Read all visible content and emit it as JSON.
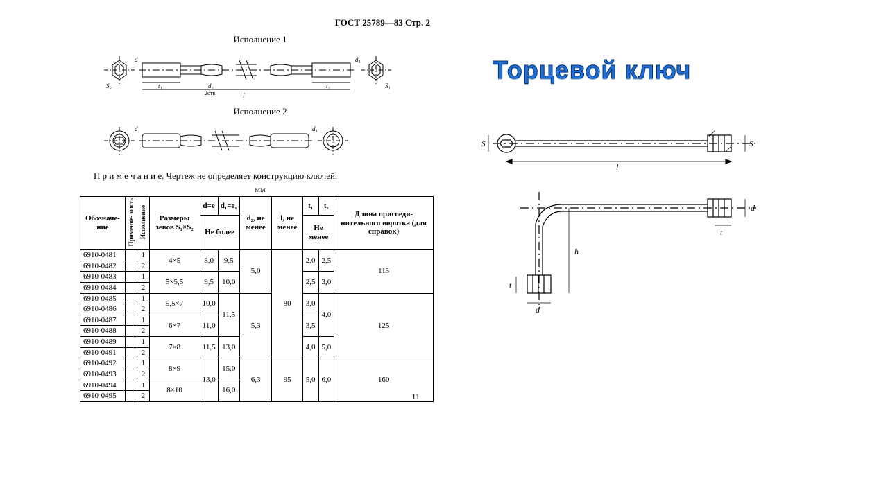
{
  "header": {
    "gost": "ГОСТ 25789—83 Стр. 2"
  },
  "labels": {
    "isp1": "Исполнение 1",
    "isp2": "Исполнение 2",
    "note": "П р и м е ч а н и е.  Чертеж не определяет конструкцию ключей.",
    "mm": "мм",
    "pagenum": "11"
  },
  "title": "Торцевой ключ",
  "dim": {
    "S2": "S₂",
    "S1": "S₁",
    "t1": "t₁",
    "t2": "t₂",
    "d2": "d₂",
    "d2s": "2отв.",
    "l": "l",
    "d1": "d₁",
    "d": "d",
    "S": "S",
    "h": "h",
    "t": "t"
  },
  "table": {
    "head": {
      "c0": "Обозначе-\nние",
      "c1": "Применяе-\nмость",
      "c2": "Исполнение",
      "c3": "Размеры\nзевов\nS₁×S₂",
      "c4": "d=e",
      "c5": "d₁=e₁",
      "c45sub": "Не более",
      "c6": "d₂,\nне\nменее",
      "c7": "l,\nне\nменее",
      "c8": "t₁",
      "c9": "t₂",
      "c89sub": "Не менее",
      "c10": "Длина\nприсоеди-\nнительного\nворотка\n(для\nсправок)"
    },
    "rows": [
      {
        "id": "6910-0481",
        "isp": "1",
        "sz": "4×5",
        "de": "8,0",
        "d1e1": "9,5",
        "d2": "5,0",
        "l": "80",
        "t1": "2,0",
        "t2": "2,5",
        "vorot": "115"
      },
      {
        "id": "6910-0482",
        "isp": "2",
        "sz": "",
        "de": "",
        "d1e1": "",
        "d2": "",
        "l": "",
        "t1": "",
        "t2": "",
        "vorot": ""
      },
      {
        "id": "6910-0483",
        "isp": "1",
        "sz": "5×5,5",
        "de": "9,5",
        "d1e1": "10,0",
        "d2": "",
        "l": "",
        "t1": "2,5",
        "t2": "3,0",
        "vorot": ""
      },
      {
        "id": "6910-0484",
        "isp": "2",
        "sz": "",
        "de": "",
        "d1e1": "",
        "d2": "",
        "l": "",
        "t1": "",
        "t2": "",
        "vorot": ""
      },
      {
        "id": "6910-0485",
        "isp": "1",
        "sz": "5,5×7",
        "de": "10,0",
        "d1e1": "11,5",
        "d2": "5,3",
        "l": "",
        "t1": "3,0",
        "t2": "4,0",
        "vorot": "125"
      },
      {
        "id": "6910-0486",
        "isp": "2",
        "sz": "",
        "de": "",
        "d1e1": "",
        "d2": "",
        "l": "",
        "t1": "",
        "t2": "",
        "vorot": ""
      },
      {
        "id": "6910-0487",
        "isp": "1",
        "sz": "6×7",
        "de": "11,0",
        "d1e1": "",
        "d2": "",
        "l": "",
        "t1": "3,5",
        "t2": "",
        "vorot": ""
      },
      {
        "id": "6910-0488",
        "isp": "2",
        "sz": "",
        "de": "",
        "d1e1": "",
        "d2": "",
        "l": "",
        "t1": "",
        "t2": "",
        "vorot": ""
      },
      {
        "id": "6910-0489",
        "isp": "1",
        "sz": "7×8",
        "de": "11,5",
        "d1e1": "13,0",
        "d2": "",
        "l": "",
        "t1": "4,0",
        "t2": "5,0",
        "vorot": ""
      },
      {
        "id": "6910-0491",
        "isp": "2",
        "sz": "",
        "de": "",
        "d1e1": "",
        "d2": "",
        "l": "",
        "t1": "",
        "t2": "",
        "vorot": ""
      },
      {
        "id": "6910-0492",
        "isp": "1",
        "sz": "8×9",
        "de": "13,0",
        "d1e1": "15,0",
        "d2": "6,3",
        "l": "95",
        "t1": "5,0",
        "t2": "6,0",
        "vorot": "160"
      },
      {
        "id": "6910-0493",
        "isp": "2",
        "sz": "",
        "de": "",
        "d1e1": "",
        "d2": "",
        "l": "",
        "t1": "",
        "t2": "",
        "vorot": ""
      },
      {
        "id": "6910-0494",
        "isp": "1",
        "sz": "8×10",
        "de": "",
        "d1e1": "16,0",
        "d2": "",
        "l": "",
        "t1": "",
        "t2": "",
        "vorot": ""
      },
      {
        "id": "6910-0495",
        "isp": "2",
        "sz": "",
        "de": "",
        "d1e1": "",
        "d2": "",
        "l": "",
        "t1": "",
        "t2": "",
        "vorot": ""
      }
    ]
  },
  "style": {
    "stroke": "#000",
    "thin": 0.8,
    "med": 1.2,
    "title_color": "#1e6fd9",
    "title_stroke": "#0b3568"
  }
}
